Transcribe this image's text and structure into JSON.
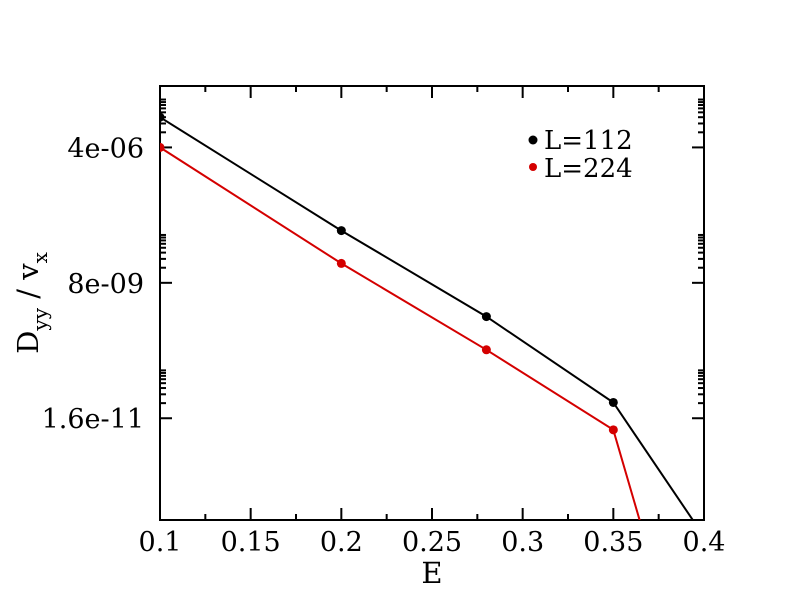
{
  "chart_data": {
    "type": "line",
    "xlabel": "E",
    "ylabel": {
      "main": "D",
      "sub1": "yy",
      "sep": " / v",
      "sub2": "x"
    },
    "xlim": [
      0.1,
      0.4
    ],
    "ylim": [
      1.5e-13,
      6.7e-05
    ],
    "yscale": "log",
    "grid": false,
    "legend_position": "top-right",
    "x_ticks": [
      {
        "value": 0.1,
        "label": "0.1"
      },
      {
        "value": 0.15,
        "label": "0.15"
      },
      {
        "value": 0.2,
        "label": "0.2"
      },
      {
        "value": 0.25,
        "label": "0.25"
      },
      {
        "value": 0.3,
        "label": "0.3"
      },
      {
        "value": 0.35,
        "label": "0.35"
      },
      {
        "value": 0.4,
        "label": "0.4"
      }
    ],
    "y_ticks": [
      {
        "value": 4e-06,
        "label": "4e-06"
      },
      {
        "value": 8e-09,
        "label": "8e-09"
      },
      {
        "value": 1.6e-11,
        "label": "1.6e-11"
      }
    ],
    "series": [
      {
        "name": "L=112",
        "color": "#000000",
        "points": [
          {
            "x": 0.1,
            "y": 1.6e-05
          },
          {
            "x": 0.2,
            "y": 8.8e-08
          },
          {
            "x": 0.28,
            "y": 1.7e-09
          },
          {
            "x": 0.35,
            "y": 3.3e-11
          },
          {
            "x": 0.395,
            "y": 1.3e-13
          }
        ]
      },
      {
        "name": "L=224",
        "color": "#d40000",
        "points": [
          {
            "x": 0.1,
            "y": 4e-06
          },
          {
            "x": 0.2,
            "y": 1.95e-08
          },
          {
            "x": 0.28,
            "y": 3.7e-10
          },
          {
            "x": 0.35,
            "y": 9.4e-12
          },
          {
            "x": 0.365,
            "y": 1.3e-13
          }
        ]
      }
    ]
  }
}
